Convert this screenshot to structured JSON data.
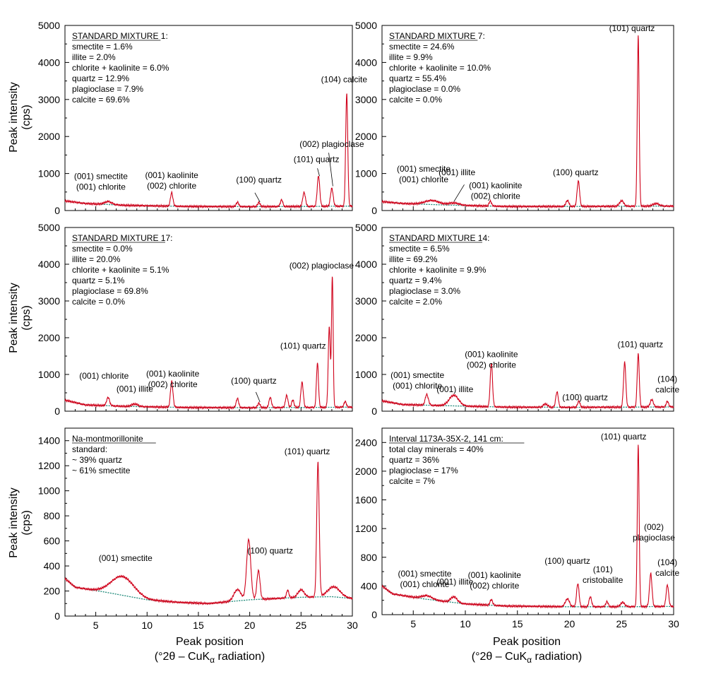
{
  "y_axis_label": [
    "Peak intensity",
    "(cps)"
  ],
  "x_axis_label": [
    "Peak position",
    "(°2θ – CuK",
    "α",
    " radiation)"
  ],
  "colors": {
    "pattern": "#d0021b",
    "background_fit": "#1f8a7a",
    "frame": "#000000"
  },
  "chart_data": [
    {
      "type": "line",
      "panel": "top-left",
      "legend_title": "STANDARD MIXTURE 1:",
      "legend_lines": [
        "smectite = 1.6%",
        "illite = 2.0%",
        "chlorite + kaolinite = 6.0%",
        "quartz = 12.9%",
        "plagioclase = 7.9%",
        "calcite = 69.6%"
      ],
      "xlim": [
        2,
        30
      ],
      "ylim": [
        0,
        5000
      ],
      "xticks": [
        5,
        10,
        15,
        20,
        25,
        30
      ],
      "yticks": [
        0,
        1000,
        2000,
        3000,
        4000,
        5000
      ],
      "show_xtick_labels": false,
      "background": [
        [
          2,
          260
        ],
        [
          4,
          190
        ],
        [
          8,
          140
        ],
        [
          14,
          110
        ],
        [
          20,
          105
        ],
        [
          25,
          110
        ],
        [
          30,
          120
        ]
      ],
      "peaks": [
        [
          6.2,
          80,
          0.35
        ],
        [
          12.4,
          360,
          0.12
        ],
        [
          18.8,
          120,
          0.12
        ],
        [
          20.9,
          110,
          0.12
        ],
        [
          23.1,
          180,
          0.12
        ],
        [
          25.3,
          380,
          0.13
        ],
        [
          26.7,
          830,
          0.12
        ],
        [
          28.0,
          480,
          0.13
        ],
        [
          29.45,
          3050,
          0.1
        ]
      ],
      "annotations": [
        {
          "lines": [
            "(001) smectite",
            "(001) chlorite"
          ],
          "x": 5.5,
          "y": 850
        },
        {
          "lines": [
            "(001) kaolinite",
            "(002) chlorite"
          ],
          "x": 12.4,
          "y": 880
        },
        {
          "lines": [
            "(100) quartz"
          ],
          "x": 20.9,
          "y": 750
        },
        {
          "lines": [
            "(101) quartz"
          ],
          "x": 26.5,
          "y": 1310
        },
        {
          "lines": [
            "(002) plagioclase"
          ],
          "x": 28.0,
          "y": 1720
        },
        {
          "lines": [
            "(104) calcite"
          ],
          "x": 29.2,
          "y": 3460
        }
      ],
      "leaders": [
        [
          [
            26.6,
            1140
          ],
          [
            26.8,
            930
          ]
        ],
        [
          [
            27.7,
            1560
          ],
          [
            28.1,
            660
          ]
        ],
        [
          [
            20.5,
            480
          ],
          [
            21.0,
            230
          ]
        ]
      ]
    },
    {
      "type": "line",
      "panel": "top-right",
      "legend_title": "STANDARD MIXTURE 7:",
      "legend_lines": [
        "smectite = 24.6%",
        "illite = 9.9%",
        "chlorite + kaolinite = 10.0%",
        "quartz = 55.4%",
        "plagioclase = 0.0%",
        "calcite = 0.0%"
      ],
      "xlim": [
        2,
        30
      ],
      "ylim": [
        0,
        5000
      ],
      "xticks": [
        5,
        10,
        15,
        20,
        25,
        30
      ],
      "yticks": [
        0,
        1000,
        2000,
        3000,
        4000,
        5000
      ],
      "show_xtick_labels": false,
      "background": [
        [
          2,
          240
        ],
        [
          4,
          190
        ],
        [
          8,
          150
        ],
        [
          14,
          110
        ],
        [
          20,
          110
        ],
        [
          25,
          115
        ],
        [
          30,
          120
        ]
      ],
      "peaks": [
        [
          6.8,
          110,
          0.7
        ],
        [
          8.9,
          60,
          0.5
        ],
        [
          12.4,
          130,
          0.12
        ],
        [
          19.8,
          160,
          0.15
        ],
        [
          20.85,
          680,
          0.12
        ],
        [
          25.0,
          150,
          0.2
        ],
        [
          26.6,
          4600,
          0.09
        ],
        [
          28.3,
          70,
          0.3
        ]
      ],
      "annotations": [
        {
          "lines": [
            "(001) smectite",
            "(001) chlorite"
          ],
          "x": 6.0,
          "y": 1050
        },
        {
          "lines": [
            "(001) illite"
          ],
          "x": 9.2,
          "y": 950
        },
        {
          "lines": [
            "(001) kaolinite",
            "(002) chlorite"
          ],
          "x": 12.9,
          "y": 600
        },
        {
          "lines": [
            "(100) quartz"
          ],
          "x": 20.6,
          "y": 950
        },
        {
          "lines": [
            "(101) quartz"
          ],
          "x": 26.0,
          "y": 4850
        }
      ],
      "leaders": [
        [
          [
            9.9,
            700
          ],
          [
            8.9,
            240
          ]
        ]
      ]
    },
    {
      "type": "line",
      "panel": "middle-left",
      "legend_title": "STANDARD MIXTURE 17:",
      "legend_lines": [
        "smectite = 0.0%",
        "illite = 20.0%",
        "chlorite + kaolinite = 5.1%",
        "quartz = 5.1%",
        "plagioclase = 69.8%",
        "calcite = 0.0%"
      ],
      "xlim": [
        2,
        30
      ],
      "ylim": [
        0,
        5000
      ],
      "xticks": [
        5,
        10,
        15,
        20,
        25,
        30
      ],
      "yticks": [
        0,
        1000,
        2000,
        3000,
        4000,
        5000
      ],
      "show_xtick_labels": false,
      "background": [
        [
          2,
          300
        ],
        [
          4,
          170
        ],
        [
          8,
          130
        ],
        [
          14,
          100
        ],
        [
          20,
          95
        ],
        [
          25,
          100
        ],
        [
          30,
          110
        ]
      ],
      "peaks": [
        [
          6.2,
          220,
          0.15
        ],
        [
          8.8,
          70,
          0.3
        ],
        [
          12.4,
          700,
          0.12
        ],
        [
          18.8,
          250,
          0.12
        ],
        [
          20.9,
          120,
          0.12
        ],
        [
          22.0,
          280,
          0.12
        ],
        [
          23.6,
          330,
          0.12
        ],
        [
          24.2,
          200,
          0.12
        ],
        [
          25.1,
          680,
          0.12
        ],
        [
          26.6,
          1200,
          0.1
        ],
        [
          27.75,
          2200,
          0.1
        ],
        [
          28.05,
          3550,
          0.08
        ],
        [
          29.3,
          150,
          0.12
        ]
      ],
      "annotations": [
        {
          "lines": [
            "(001) chlorite"
          ],
          "x": 5.8,
          "y": 880
        },
        {
          "lines": [
            "(001) illite"
          ],
          "x": 8.8,
          "y": 530
        },
        {
          "lines": [
            "(001) kaolinite",
            "(002) chlorite"
          ],
          "x": 12.5,
          "y": 940
        },
        {
          "lines": [
            "(100) quartz"
          ],
          "x": 20.4,
          "y": 750
        },
        {
          "lines": [
            "(101) quartz"
          ],
          "x": 25.2,
          "y": 1700
        },
        {
          "lines": [
            "(002) plagioclase"
          ],
          "x": 27.0,
          "y": 3880
        }
      ],
      "leaders": [
        [
          [
            20.6,
            520
          ],
          [
            21.0,
            250
          ]
        ]
      ]
    },
    {
      "type": "line",
      "panel": "middle-right",
      "legend_title": "STANDARD MIXTURE 14:",
      "legend_lines": [
        "smectite = 6.5%",
        "illite = 69.2%",
        "chlorite + kaolinite = 9.9%",
        "quartz = 9.4%",
        "plagioclase = 3.0%",
        "calcite = 2.0%"
      ],
      "xlim": [
        2,
        30
      ],
      "ylim": [
        0,
        5000
      ],
      "xticks": [
        5,
        10,
        15,
        20,
        25,
        30
      ],
      "yticks": [
        0,
        1000,
        2000,
        3000,
        4000,
        5000
      ],
      "show_xtick_labels": false,
      "background": [
        [
          2,
          280
        ],
        [
          4,
          180
        ],
        [
          8,
          150
        ],
        [
          14,
          110
        ],
        [
          20,
          105
        ],
        [
          25,
          110
        ],
        [
          30,
          115
        ]
      ],
      "peaks": [
        [
          6.3,
          290,
          0.15
        ],
        [
          8.9,
          290,
          0.45
        ],
        [
          12.5,
          1200,
          0.11
        ],
        [
          17.7,
          90,
          0.2
        ],
        [
          18.8,
          420,
          0.12
        ],
        [
          20.9,
          160,
          0.12
        ],
        [
          25.3,
          1220,
          0.11
        ],
        [
          26.6,
          1450,
          0.1
        ],
        [
          27.9,
          200,
          0.15
        ],
        [
          29.4,
          150,
          0.12
        ]
      ],
      "annotations": [
        {
          "lines": [
            "(001) smectite",
            "(001) chlorite"
          ],
          "x": 5.4,
          "y": 900
        },
        {
          "lines": [
            "(001) illite"
          ],
          "x": 9.0,
          "y": 520
        },
        {
          "lines": [
            "(001) kaolinite",
            "(002) chlorite"
          ],
          "x": 12.5,
          "y": 1470
        },
        {
          "lines": [
            "(100) quartz"
          ],
          "x": 21.5,
          "y": 300
        },
        {
          "lines": [
            "(101) quartz"
          ],
          "x": 26.8,
          "y": 1740
        },
        {
          "lines": [
            "(104)",
            "calcite"
          ],
          "x": 29.4,
          "y": 800
        }
      ],
      "leaders": []
    },
    {
      "type": "line",
      "panel": "bottom-left",
      "legend_title": "Na-montmorillonite",
      "legend_lines": [
        "standard:",
        "~ 39% quartz",
        "~ 61% smectite"
      ],
      "xlim": [
        2,
        30
      ],
      "ylim": [
        0,
        1500
      ],
      "xticks": [
        5,
        10,
        15,
        20,
        25,
        30
      ],
      "yticks": [
        0,
        200,
        400,
        600,
        800,
        1000,
        1200,
        1400
      ],
      "show_xtick_labels": true,
      "background": [
        [
          2,
          300
        ],
        [
          3,
          230
        ],
        [
          6,
          190
        ],
        [
          10,
          130
        ],
        [
          13,
          110
        ],
        [
          16,
          100
        ],
        [
          20,
          130
        ],
        [
          25,
          150
        ],
        [
          28,
          155
        ],
        [
          30,
          140
        ]
      ],
      "peaks": [
        [
          7.6,
          150,
          1.1
        ],
        [
          18.8,
          90,
          0.35
        ],
        [
          19.9,
          480,
          0.2
        ],
        [
          20.85,
          230,
          0.15
        ],
        [
          23.7,
          60,
          0.12
        ],
        [
          25.0,
          60,
          0.3
        ],
        [
          26.65,
          1070,
          0.12
        ],
        [
          28.2,
          80,
          0.6
        ]
      ],
      "annotations": [
        {
          "lines": [
            "(001) smectite"
          ],
          "x": 7.9,
          "y": 440
        },
        {
          "lines": [
            "(100) quartz"
          ],
          "x": 22.0,
          "y": 500
        },
        {
          "lines": [
            "(101) quartz"
          ],
          "x": 25.6,
          "y": 1290
        }
      ],
      "leaders": []
    },
    {
      "type": "line",
      "panel": "bottom-right",
      "legend_title": "Interval 1173A-35X-2, 141 cm:",
      "legend_lines": [
        "total clay minerals = 40%",
        "quartz = 36%",
        "plagioclase = 17%",
        "calcite = 7%"
      ],
      "xlim": [
        2,
        30
      ],
      "ylim": [
        0,
        2600
      ],
      "xticks": [
        5,
        10,
        15,
        20,
        25,
        30
      ],
      "yticks": [
        0,
        400,
        800,
        1200,
        1600,
        2000,
        2400
      ],
      "show_xtick_labels": true,
      "background": [
        [
          2,
          400
        ],
        [
          3,
          290
        ],
        [
          6,
          220
        ],
        [
          10,
          150
        ],
        [
          14,
          120
        ],
        [
          20,
          110
        ],
        [
          25,
          110
        ],
        [
          30,
          115
        ]
      ],
      "peaks": [
        [
          6.3,
          50,
          0.5
        ],
        [
          8.9,
          80,
          0.3
        ],
        [
          12.5,
          80,
          0.12
        ],
        [
          19.8,
          110,
          0.2
        ],
        [
          20.8,
          320,
          0.12
        ],
        [
          22.0,
          140,
          0.12
        ],
        [
          23.6,
          70,
          0.12
        ],
        [
          25.1,
          60,
          0.2
        ],
        [
          26.6,
          2250,
          0.09
        ],
        [
          27.8,
          460,
          0.12
        ],
        [
          29.4,
          300,
          0.12
        ]
      ],
      "annotations": [
        {
          "lines": [
            "(001) smectite",
            "(001) chlorite"
          ],
          "x": 6.1,
          "y": 530
        },
        {
          "lines": [
            "(001) illite"
          ],
          "x": 9.0,
          "y": 420
        },
        {
          "lines": [
            "(001) kaolinite",
            "(002) chlorite"
          ],
          "x": 12.8,
          "y": 510
        },
        {
          "lines": [
            "(100) quartz"
          ],
          "x": 19.8,
          "y": 710
        },
        {
          "lines": [
            "(101)",
            "cristobalite"
          ],
          "x": 23.2,
          "y": 590
        },
        {
          "lines": [
            "(101) quartz"
          ],
          "x": 25.2,
          "y": 2440
        },
        {
          "lines": [
            "(002)",
            "plagioclase"
          ],
          "x": 28.1,
          "y": 1180
        },
        {
          "lines": [
            "(104)",
            "calcite"
          ],
          "x": 29.4,
          "y": 690
        }
      ],
      "leaders": []
    }
  ]
}
